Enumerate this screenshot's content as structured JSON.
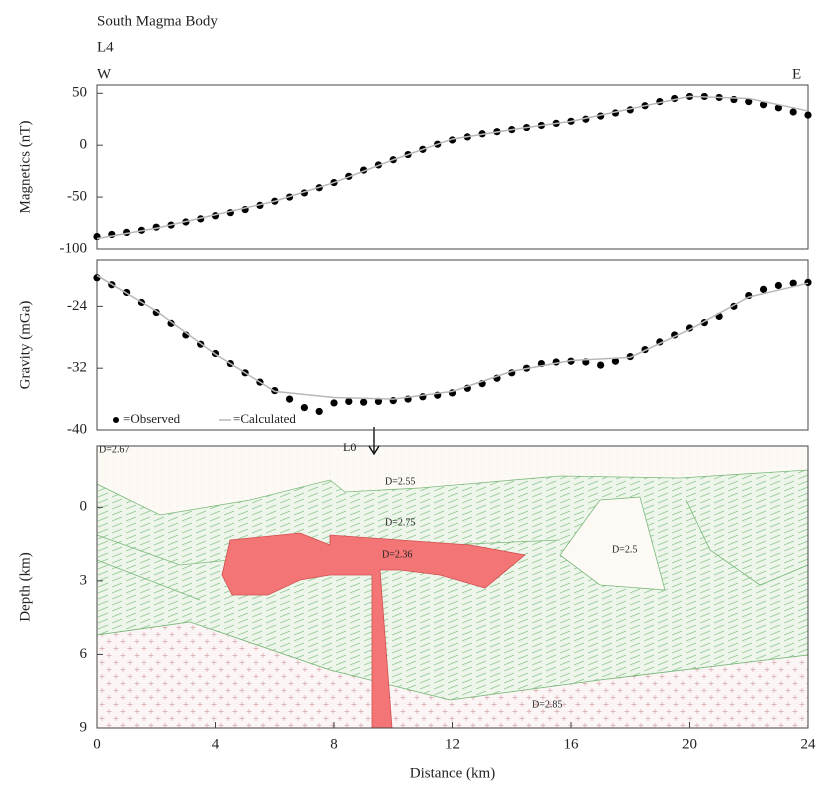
{
  "chart_data": [
    {
      "type": "line",
      "title": "South Magma Body",
      "subtitle": "L4",
      "annotations": [
        "W",
        "E"
      ],
      "y_label": "Magnetics (nT)",
      "xlim": [
        0,
        24
      ],
      "ylim": [
        -100,
        58
      ],
      "yticks": [
        -100,
        -50,
        0,
        50
      ],
      "series": [
        {
          "mode": "markers",
          "color": "#000000",
          "x": [
            0,
            0.5,
            1,
            1.5,
            2,
            2.5,
            3,
            3.5,
            4,
            4.5,
            5,
            5.5,
            6,
            6.5,
            7,
            7.5,
            8,
            8.5,
            9,
            9.5,
            10,
            10.5,
            11,
            11.5,
            12,
            12.5,
            13,
            13.5,
            14,
            14.5,
            15,
            15.5,
            16,
            16.5,
            17,
            17.5,
            18,
            18.5,
            19,
            19.5,
            20,
            20.5,
            21,
            21.5,
            22,
            22.5,
            23,
            23.5,
            24
          ],
          "values": [
            -88,
            -86,
            -84,
            -82,
            -79,
            -77,
            -74,
            -71,
            -68,
            -65,
            -62,
            -58,
            -54,
            -50,
            -46,
            -41,
            -36,
            -30,
            -24,
            -19,
            -14,
            -9,
            -4,
            1,
            5,
            8,
            11,
            13,
            15,
            17,
            19,
            21,
            23,
            25,
            28,
            31,
            34,
            38,
            42,
            45,
            47,
            47,
            46,
            44,
            42,
            39,
            36,
            32,
            29
          ]
        },
        {
          "mode": "line",
          "color": "#b8b8b8",
          "x": [
            0,
            2,
            4,
            6,
            8,
            10,
            12,
            14,
            16,
            18,
            20,
            22,
            24
          ],
          "values": [
            -90,
            -80,
            -67,
            -54,
            -36,
            -14,
            6,
            15,
            23,
            35,
            47,
            45,
            33
          ]
        }
      ]
    },
    {
      "type": "line",
      "y_label": "Gravity (mGa)",
      "xlim": [
        0,
        24
      ],
      "ylim": [
        -40,
        -18
      ],
      "yticks": [
        -40,
        -32,
        -24
      ],
      "legend": "lower left",
      "series": [
        {
          "name": "=Observed",
          "mode": "markers",
          "color": "#000000",
          "x": [
            0,
            0.5,
            1,
            1.5,
            2,
            2.5,
            3,
            3.5,
            4,
            4.5,
            5,
            5.5,
            6,
            6.5,
            7,
            7.5,
            8,
            8.5,
            9,
            9.5,
            10,
            10.5,
            11,
            11.5,
            12,
            12.5,
            13,
            13.5,
            14,
            14.5,
            15,
            15.5,
            16,
            16.5,
            17,
            17.5,
            18,
            18.5,
            19,
            19.5,
            20,
            20.5,
            21,
            21.5,
            22,
            22.5,
            23,
            23.5,
            24
          ],
          "values": [
            -20.3,
            -21.2,
            -22.2,
            -23.5,
            -24.8,
            -26.2,
            -27.7,
            -28.9,
            -30.1,
            -31.4,
            -32.6,
            -33.8,
            -34.9,
            -36.0,
            -37.1,
            -37.6,
            -36.5,
            -36.3,
            -36.4,
            -36.3,
            -36.2,
            -36.0,
            -35.7,
            -35.5,
            -35.2,
            -34.6,
            -34.0,
            -33.3,
            -32.6,
            -32.0,
            -31.4,
            -31.2,
            -31.1,
            -31.2,
            -31.6,
            -31.1,
            -30.5,
            -29.6,
            -28.6,
            -27.7,
            -26.8,
            -26.1,
            -25.3,
            -24.0,
            -22.6,
            -21.8,
            -21.3,
            -21.0,
            -20.9
          ]
        },
        {
          "name": "=Calculated",
          "mode": "line",
          "color": "#b8b8b8",
          "x": [
            0,
            2,
            4,
            6,
            8,
            10,
            12,
            14,
            16,
            18,
            20,
            22,
            24
          ],
          "values": [
            -20.0,
            -24.6,
            -30.2,
            -35.0,
            -35.8,
            -36.0,
            -35.0,
            -32.4,
            -31.0,
            -30.6,
            -27.0,
            -22.8,
            -21.0
          ]
        }
      ]
    },
    {
      "type": "section",
      "x_label": "Distance (km)",
      "y_label": "Depth (km)",
      "xlim": [
        0,
        24
      ],
      "xticks": [
        0,
        4,
        8,
        12,
        16,
        20,
        24
      ],
      "ylim": [
        9,
        -2.5
      ],
      "yticks": [
        0,
        3,
        6,
        9
      ],
      "labels": [
        "D=2.67",
        "L0",
        "D=2.55",
        "D=2.75",
        "D=2.36",
        "D=2.5",
        "D=2.85"
      ]
    }
  ]
}
